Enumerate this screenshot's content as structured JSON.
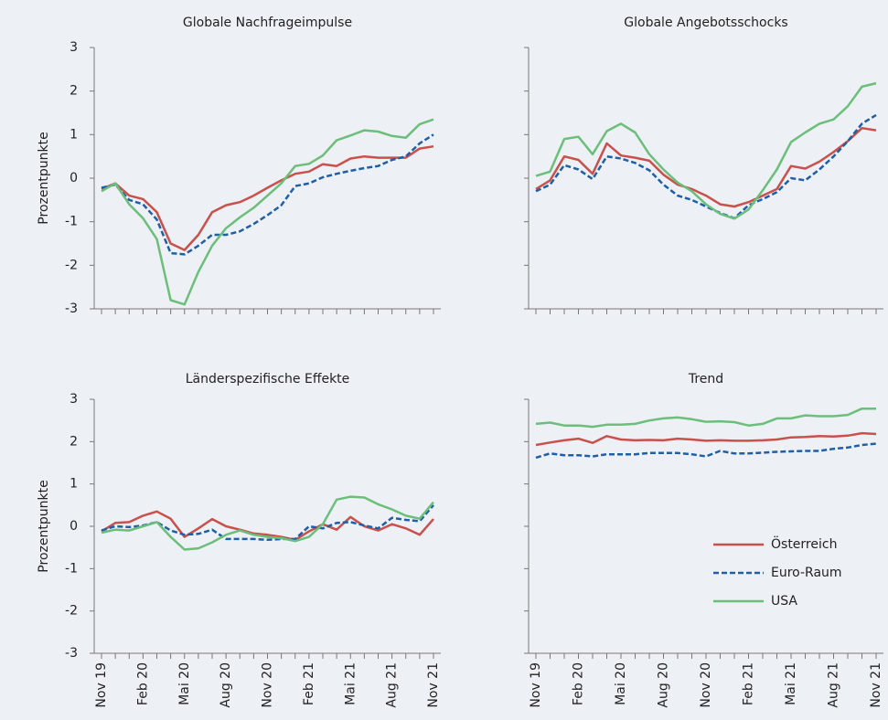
{
  "chart_data": [
    {
      "type": "line",
      "title": "Globale Nachfrageimpulse",
      "ylabel": "Prozentpunkte",
      "ylim": [
        -3,
        3
      ],
      "yticks": [
        -3,
        -2,
        -1,
        0,
        1,
        2,
        3
      ],
      "ytick_labels": true,
      "series": [
        {
          "color": "#c9504b",
          "dash": false,
          "values": [
            -0.25,
            -0.12,
            -0.4,
            -0.48,
            -0.78,
            -1.5,
            -1.65,
            -1.3,
            -0.78,
            -0.62,
            -0.55,
            -0.4,
            -0.22,
            -0.05,
            0.1,
            0.15,
            0.32,
            0.28,
            0.45,
            0.5,
            0.47,
            0.47,
            0.47,
            0.68,
            0.73
          ]
        },
        {
          "color": "#1f5fa6",
          "dash": true,
          "values": [
            -0.22,
            -0.15,
            -0.5,
            -0.6,
            -0.95,
            -1.72,
            -1.75,
            -1.55,
            -1.3,
            -1.3,
            -1.22,
            -1.05,
            -0.85,
            -0.62,
            -0.18,
            -0.12,
            0.02,
            0.1,
            0.17,
            0.23,
            0.28,
            0.42,
            0.5,
            0.8,
            1.0
          ]
        },
        {
          "color": "#6cbf7b",
          "dash": false,
          "values": [
            -0.3,
            -0.12,
            -0.6,
            -0.92,
            -1.4,
            -2.8,
            -2.9,
            -2.15,
            -1.55,
            -1.15,
            -0.9,
            -0.68,
            -0.4,
            -0.12,
            0.28,
            0.33,
            0.52,
            0.87,
            0.98,
            1.1,
            1.07,
            0.97,
            0.93,
            1.24,
            1.35
          ]
        }
      ]
    },
    {
      "type": "line",
      "title": "Globale Angebotsschocks",
      "ylim": [
        -3,
        3
      ],
      "yticks": [
        -3,
        -2,
        -1,
        0,
        1,
        2,
        3
      ],
      "ytick_labels": false,
      "series": [
        {
          "color": "#c9504b",
          "dash": false,
          "values": [
            -0.25,
            -0.05,
            0.5,
            0.42,
            0.1,
            0.8,
            0.52,
            0.47,
            0.4,
            0.08,
            -0.15,
            -0.25,
            -0.4,
            -0.6,
            -0.65,
            -0.55,
            -0.4,
            -0.25,
            0.28,
            0.22,
            0.38,
            0.6,
            0.85,
            1.15,
            1.1
          ]
        },
        {
          "color": "#1f5fa6",
          "dash": true,
          "values": [
            -0.3,
            -0.15,
            0.3,
            0.2,
            -0.02,
            0.5,
            0.45,
            0.35,
            0.18,
            -0.15,
            -0.4,
            -0.5,
            -0.65,
            -0.8,
            -0.92,
            -0.62,
            -0.48,
            -0.32,
            0.0,
            -0.05,
            0.2,
            0.5,
            0.85,
            1.25,
            1.45
          ]
        },
        {
          "color": "#6cbf7b",
          "dash": false,
          "values": [
            0.05,
            0.15,
            0.9,
            0.95,
            0.55,
            1.08,
            1.25,
            1.05,
            0.55,
            0.2,
            -0.1,
            -0.3,
            -0.6,
            -0.82,
            -0.93,
            -0.72,
            -0.28,
            0.2,
            0.83,
            1.05,
            1.25,
            1.35,
            1.65,
            2.1,
            2.18
          ]
        }
      ]
    },
    {
      "type": "line",
      "title": "Länderspezifische Effekte",
      "ylabel": "Prozentpunkte",
      "ylim": [
        -3,
        3
      ],
      "yticks": [
        -3,
        -2,
        -1,
        0,
        1,
        2,
        3
      ],
      "ytick_labels": true,
      "categories": [
        "Nov 19",
        null,
        null,
        "Feb 20",
        null,
        null,
        "Mai 20",
        null,
        null,
        "Aug 20",
        null,
        null,
        "Nov 20",
        null,
        null,
        "Feb 21",
        null,
        null,
        "Mai 21",
        null,
        null,
        "Aug 21",
        null,
        null,
        "Nov 21"
      ],
      "series": [
        {
          "color": "#c9504b",
          "dash": false,
          "values": [
            -0.12,
            0.08,
            0.1,
            0.25,
            0.35,
            0.18,
            -0.25,
            -0.05,
            0.17,
            0.0,
            -0.08,
            -0.17,
            -0.2,
            -0.25,
            -0.32,
            -0.12,
            0.05,
            -0.08,
            0.22,
            0.0,
            -0.1,
            0.05,
            -0.05,
            -0.2,
            0.17
          ]
        },
        {
          "color": "#1f5fa6",
          "dash": true,
          "values": [
            -0.1,
            0.0,
            -0.02,
            0.02,
            0.1,
            -0.1,
            -0.2,
            -0.18,
            -0.08,
            -0.3,
            -0.3,
            -0.3,
            -0.32,
            -0.3,
            -0.3,
            0.0,
            -0.05,
            0.08,
            0.1,
            0.02,
            -0.05,
            0.2,
            0.15,
            0.12,
            0.5
          ]
        },
        {
          "color": "#6cbf7b",
          "dash": false,
          "values": [
            -0.15,
            -0.08,
            -0.1,
            0.0,
            0.1,
            -0.25,
            -0.55,
            -0.52,
            -0.38,
            -0.2,
            -0.1,
            -0.2,
            -0.25,
            -0.28,
            -0.35,
            -0.25,
            0.05,
            0.63,
            0.7,
            0.68,
            0.52,
            0.4,
            0.25,
            0.18,
            0.57
          ]
        }
      ]
    },
    {
      "type": "line",
      "title": "Trend",
      "legend": "lower right",
      "ylim": [
        -3,
        3
      ],
      "yticks": [
        -3,
        -2,
        -1,
        0,
        1,
        2,
        3
      ],
      "ytick_labels": false,
      "categories": [
        "Nov 19",
        null,
        null,
        "Feb 20",
        null,
        null,
        "Mai 20",
        null,
        null,
        "Aug 20",
        null,
        null,
        "Nov 20",
        null,
        null,
        "Feb 21",
        null,
        null,
        "Mai 21",
        null,
        null,
        "Aug 21",
        null,
        null,
        "Nov 21"
      ],
      "series": [
        {
          "name": "Österreich",
          "color": "#c9504b",
          "dash": false,
          "values": [
            1.92,
            1.98,
            2.03,
            2.07,
            1.97,
            2.13,
            2.05,
            2.03,
            2.04,
            2.03,
            2.07,
            2.05,
            2.02,
            2.03,
            2.02,
            2.02,
            2.03,
            2.05,
            2.1,
            2.11,
            2.13,
            2.12,
            2.14,
            2.2,
            2.18
          ]
        },
        {
          "name": "Euro-Raum",
          "color": "#1f5fa6",
          "dash": true,
          "values": [
            1.62,
            1.72,
            1.68,
            1.68,
            1.65,
            1.7,
            1.7,
            1.7,
            1.73,
            1.73,
            1.73,
            1.7,
            1.65,
            1.78,
            1.72,
            1.72,
            1.74,
            1.76,
            1.77,
            1.78,
            1.78,
            1.83,
            1.86,
            1.92,
            1.95
          ]
        },
        {
          "name": "USA",
          "color": "#6cbf7b",
          "dash": false,
          "values": [
            2.42,
            2.45,
            2.38,
            2.38,
            2.35,
            2.4,
            2.4,
            2.42,
            2.5,
            2.55,
            2.57,
            2.53,
            2.47,
            2.48,
            2.46,
            2.38,
            2.42,
            2.55,
            2.55,
            2.62,
            2.6,
            2.6,
            2.63,
            2.78,
            2.78
          ]
        }
      ]
    }
  ]
}
